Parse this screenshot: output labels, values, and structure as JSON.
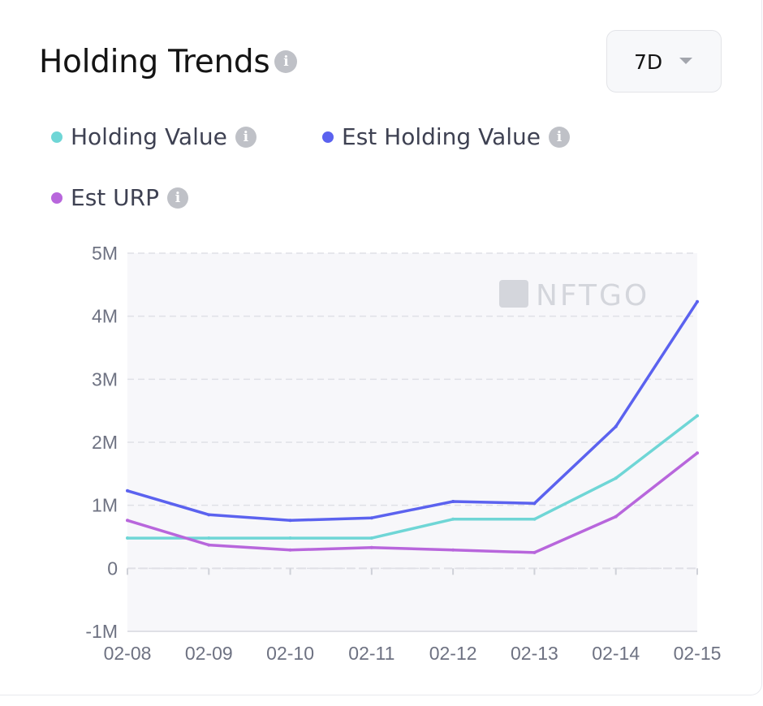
{
  "header": {
    "title": "Holding Trends",
    "info_glyph": "i"
  },
  "timeframe": {
    "selected": "7D"
  },
  "watermark": "NFTGO",
  "colors": {
    "holding_value": "#6fd6d6",
    "est_holding_value": "#5b62ef",
    "est_urp": "#b866dc",
    "plot_bg": "#f7f7fa",
    "grid": "#dfe0e6",
    "axis_text": "#6e7282"
  },
  "chart_data": {
    "type": "line",
    "title": "Holding Trends",
    "x": [
      "02-08",
      "02-09",
      "02-10",
      "02-11",
      "02-12",
      "02-13",
      "02-14",
      "02-15"
    ],
    "yticks": [
      "5M",
      "4M",
      "3M",
      "2M",
      "1M",
      "0",
      "-1M"
    ],
    "ylim": [
      -1000000,
      5000000
    ],
    "grid": true,
    "legend_position": "top-left",
    "series": [
      {
        "name": "Holding Value",
        "color": "#6fd6d6",
        "values": [
          480000,
          480000,
          480000,
          480000,
          780000,
          780000,
          1430000,
          2420000
        ]
      },
      {
        "name": "Est Holding Value",
        "color": "#5b62ef",
        "values": [
          1230000,
          850000,
          760000,
          800000,
          1060000,
          1030000,
          2250000,
          4230000
        ]
      },
      {
        "name": "Est URP",
        "color": "#b866dc",
        "values": [
          760000,
          370000,
          290000,
          330000,
          290000,
          250000,
          820000,
          1830000
        ]
      }
    ]
  }
}
